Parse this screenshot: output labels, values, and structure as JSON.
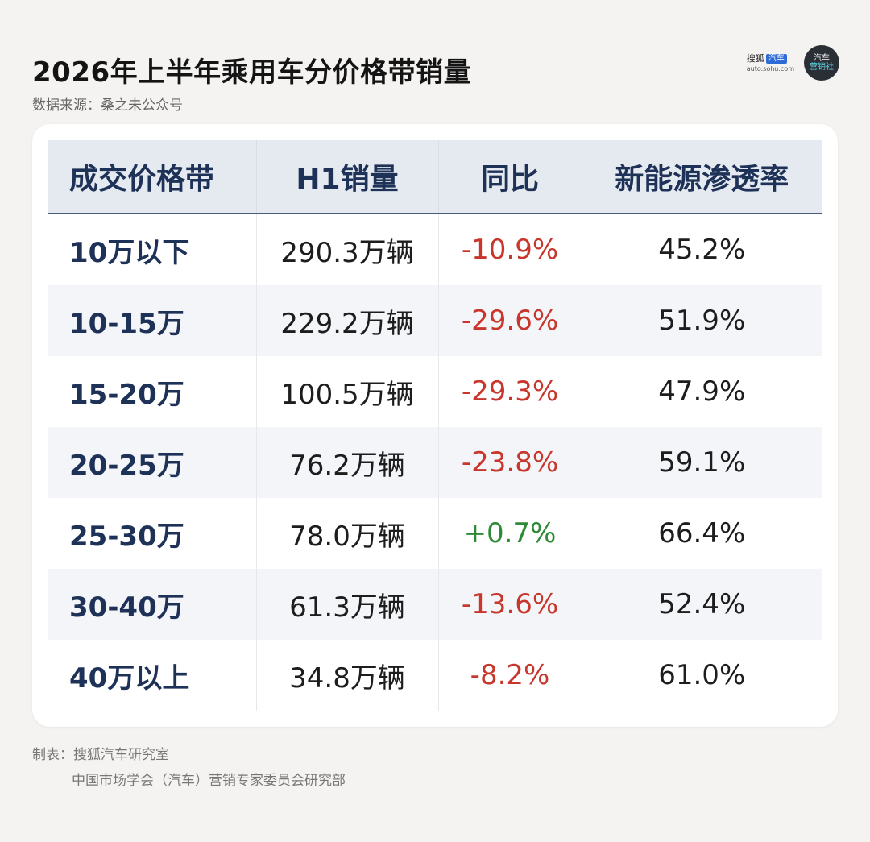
{
  "header": {
    "title": "2026年上半年乘用车分价格带销量",
    "subtitle": "数据来源：桑之未公众号"
  },
  "brand": {
    "sohu_text": "搜狐",
    "sohu_badge": "汽车",
    "sohu_url": "auto.sohu.com",
    "circle_line1": "汽车",
    "circle_line2": "营销社"
  },
  "chart_data": {
    "type": "table",
    "columns": [
      "成交价格带",
      "H1销量",
      "同比",
      "新能源渗透率"
    ],
    "rows": [
      {
        "band": "10万以下",
        "sales": "290.3万辆",
        "yoy": "-10.9%",
        "nev": "45.2%"
      },
      {
        "band": "10-15万",
        "sales": "229.2万辆",
        "yoy": "-29.6%",
        "nev": "51.9%"
      },
      {
        "band": "15-20万",
        "sales": "100.5万辆",
        "yoy": "-29.3%",
        "nev": "47.9%"
      },
      {
        "band": "20-25万",
        "sales": "76.2万辆",
        "yoy": "-23.8%",
        "nev": "59.1%"
      },
      {
        "band": "25-30万",
        "sales": "78.0万辆",
        "yoy": "+0.7%",
        "nev": "66.4%"
      },
      {
        "band": "30-40万",
        "sales": "61.3万辆",
        "yoy": "-13.6%",
        "nev": "52.4%"
      },
      {
        "band": "40万以上",
        "sales": "34.8万辆",
        "yoy": "-8.2%",
        "nev": "61.0%"
      }
    ]
  },
  "footer": {
    "line1": "制表：搜狐汽车研究室",
    "line2": "中国市场学会（汽车）营销专家委员会研究部"
  },
  "colors": {
    "negative": "#c8362c",
    "positive": "#2e8a36",
    "header_text": "#1e3157"
  }
}
